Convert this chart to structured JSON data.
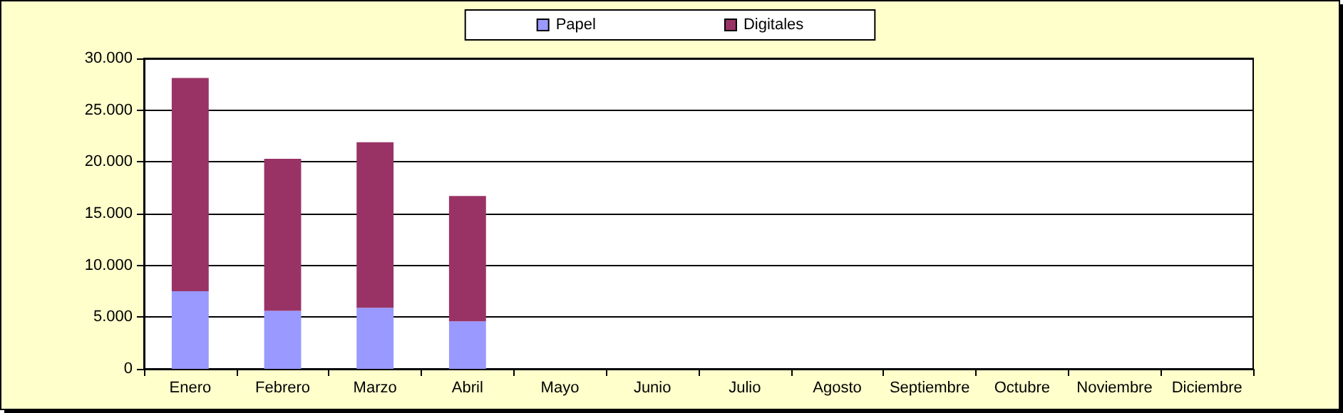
{
  "chart_data": {
    "type": "bar",
    "stacked": true,
    "categories": [
      "Enero",
      "Febrero",
      "Marzo",
      "Abril",
      "Mayo",
      "Junio",
      "Julio",
      "Agosto",
      "Septiembre",
      "Octubre",
      "Noviembre",
      "Diciembre"
    ],
    "series": [
      {
        "name": "Papel",
        "color": "#9999ff",
        "values": [
          7500,
          5600,
          5900,
          4600,
          0,
          0,
          0,
          0,
          0,
          0,
          0,
          0
        ]
      },
      {
        "name": "Digitales",
        "color": "#993366",
        "values": [
          20600,
          14700,
          16000,
          12100,
          0,
          0,
          0,
          0,
          0,
          0,
          0,
          0
        ]
      }
    ],
    "ylim": [
      0,
      30000
    ],
    "yticks": [
      {
        "value": 0,
        "label": "0"
      },
      {
        "value": 5000,
        "label": "5.000"
      },
      {
        "value": 10000,
        "label": "10.000"
      },
      {
        "value": 15000,
        "label": "15.000"
      },
      {
        "value": 20000,
        "label": "20.000"
      },
      {
        "value": 25000,
        "label": "25.000"
      },
      {
        "value": 30000,
        "label": "30.000"
      }
    ],
    "grid": "y",
    "legend": "top"
  }
}
